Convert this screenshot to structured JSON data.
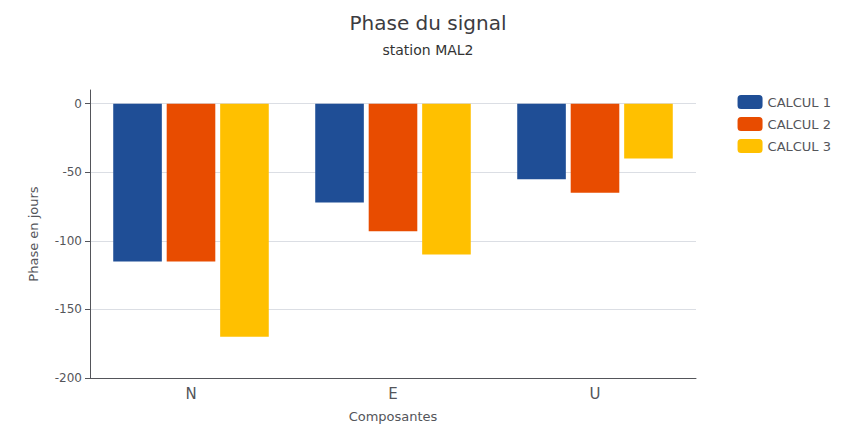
{
  "chart_data": {
    "type": "bar",
    "title": "Phase du signal",
    "subtitle": "station MAL2",
    "xlabel": "Composantes",
    "ylabel": "Phase en jours",
    "categories": [
      "N",
      "E",
      "U"
    ],
    "series": [
      {
        "name": "CALCUL 1",
        "color": "#1F4E96",
        "values": [
          -115,
          -72,
          -55
        ]
      },
      {
        "name": "CALCUL 2",
        "color": "#E84C00",
        "values": [
          -115,
          -93,
          -65
        ]
      },
      {
        "name": "CALCUL 3",
        "color": "#FFC000",
        "values": [
          -170,
          -110,
          -40
        ]
      }
    ],
    "ylim": [
      -200,
      10
    ],
    "yticks": [
      0,
      -50,
      -100,
      -150,
      -200
    ],
    "grid": true,
    "legend": "right"
  }
}
